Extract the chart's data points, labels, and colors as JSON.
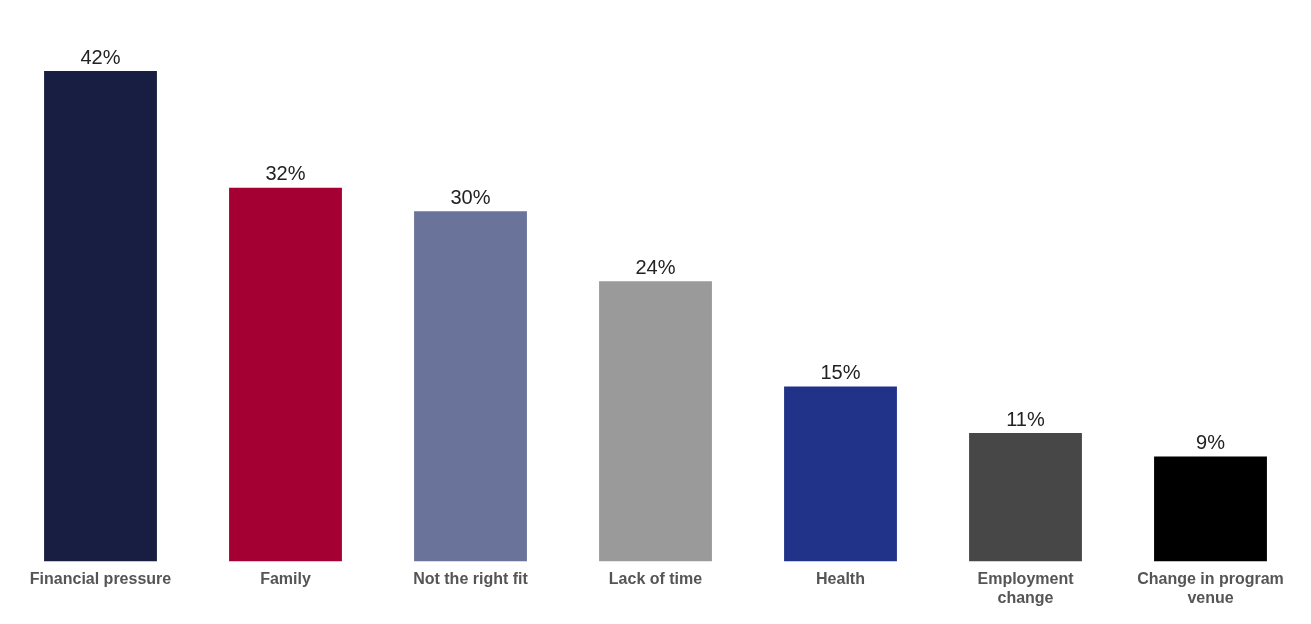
{
  "chart_data": {
    "type": "bar",
    "categories": [
      "Financial pressure",
      "Family",
      "Not the right fit",
      "Lack of time",
      "Health",
      "Employment change",
      "Change in program venue"
    ],
    "values": [
      42,
      32,
      30,
      24,
      15,
      11,
      9
    ],
    "colors": [
      "#171e42",
      "#a50034",
      "#6a7399",
      "#9a9a9a",
      "#213388",
      "#474747",
      "#000000"
    ],
    "value_labels": [
      "42%",
      "32%",
      "30%",
      "24%",
      "15%",
      "11%",
      "9%"
    ],
    "grid": false,
    "legend": false
  }
}
